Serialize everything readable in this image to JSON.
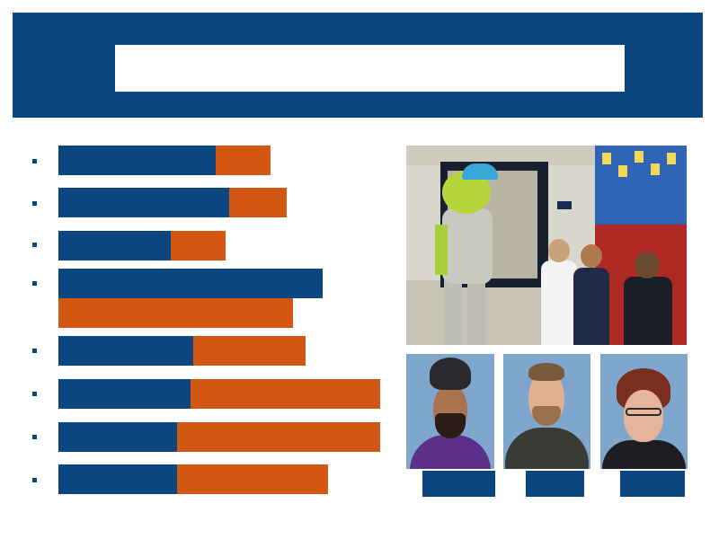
{
  "header": {
    "title": ""
  },
  "colors": {
    "primary_blue": "#0b4680",
    "accent_orange": "#d25713",
    "background": "#ffffff"
  },
  "bars": [
    {
      "blue_fraction": 0.49,
      "orange_fraction": 0.17
    },
    {
      "blue_fraction": 0.53,
      "orange_fraction": 0.18
    },
    {
      "blue_fraction": 0.35,
      "orange_fraction": 0.17
    },
    {
      "blue_fraction": 0.82,
      "orange_fraction": 0.73,
      "stacked": true
    },
    {
      "blue_fraction": 0.42,
      "orange_fraction": 0.35
    },
    {
      "blue_fraction": 0.41,
      "orange_fraction": 0.59
    },
    {
      "blue_fraction": 0.37,
      "orange_fraction": 0.63
    },
    {
      "blue_fraction": 0.37,
      "orange_fraction": 0.47
    }
  ],
  "photos": {
    "hallway": {
      "icon": "mascot-hallway-photo"
    },
    "portraits": [
      {
        "icon": "portrait-photo",
        "caption": ""
      },
      {
        "icon": "portrait-photo",
        "caption": ""
      },
      {
        "icon": "portrait-photo",
        "caption": ""
      }
    ]
  }
}
